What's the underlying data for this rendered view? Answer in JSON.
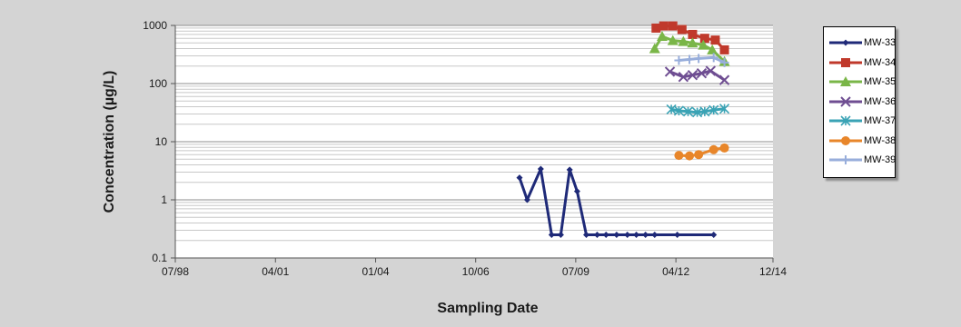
{
  "chart_data": {
    "type": "line",
    "xlabel": "Sampling Date",
    "ylabel": "Concentration (µg/L)",
    "y_scale": "log",
    "ylim": [
      0.1,
      1000
    ],
    "y_ticks": [
      {
        "value": 0.1,
        "label": "0.1"
      },
      {
        "value": 1,
        "label": "1"
      },
      {
        "value": 10,
        "label": "10"
      },
      {
        "value": 100,
        "label": "100"
      },
      {
        "value": 1000,
        "label": "1000"
      }
    ],
    "xlim": [
      "1998-07-01",
      "2014-12-01"
    ],
    "x_ticks": [
      {
        "date": "1998-07-01",
        "label": "07/98"
      },
      {
        "date": "2001-04-01",
        "label": "04/01"
      },
      {
        "date": "2004-01-01",
        "label": "01/04"
      },
      {
        "date": "2006-10-01",
        "label": "10/06"
      },
      {
        "date": "2009-07-01",
        "label": "07/09"
      },
      {
        "date": "2012-04-01",
        "label": "04/12"
      },
      {
        "date": "2014-12-01",
        "label": "12/14"
      }
    ],
    "grid": "horizontal",
    "legend_position": "right",
    "series": [
      {
        "name": "MW-33",
        "color": "#1f2a78",
        "marker": "diamond",
        "points": [
          [
            "2007-12-15",
            2.4
          ],
          [
            "2008-03-01",
            1.0
          ],
          [
            "2008-07-15",
            3.4
          ],
          [
            "2008-11-01",
            0.25
          ],
          [
            "2009-02-01",
            0.25
          ],
          [
            "2009-05-01",
            3.3
          ],
          [
            "2009-07-15",
            1.4
          ],
          [
            "2009-10-15",
            0.25
          ],
          [
            "2010-02-01",
            0.25
          ],
          [
            "2010-05-01",
            0.25
          ],
          [
            "2010-08-15",
            0.25
          ],
          [
            "2010-12-01",
            0.25
          ],
          [
            "2011-03-01",
            0.25
          ],
          [
            "2011-06-01",
            0.25
          ],
          [
            "2011-09-01",
            0.25
          ],
          [
            "2012-04-15",
            0.25
          ],
          [
            "2013-04-15",
            0.25
          ]
        ]
      },
      {
        "name": "MW-34",
        "color": "#c0392b",
        "marker": "square",
        "points": [
          [
            "2011-09-15",
            900
          ],
          [
            "2011-12-01",
            980
          ],
          [
            "2012-03-01",
            980
          ],
          [
            "2012-06-01",
            850
          ],
          [
            "2012-09-15",
            700
          ],
          [
            "2013-01-15",
            600
          ],
          [
            "2013-05-01",
            560
          ],
          [
            "2013-08-01",
            380
          ]
        ]
      },
      {
        "name": "MW-35",
        "color": "#7ab648",
        "marker": "triangle",
        "points": [
          [
            "2011-09-01",
            400
          ],
          [
            "2011-11-15",
            650
          ],
          [
            "2012-03-01",
            550
          ],
          [
            "2012-06-15",
            530
          ],
          [
            "2012-09-15",
            500
          ],
          [
            "2013-01-01",
            460
          ],
          [
            "2013-04-01",
            380
          ],
          [
            "2013-08-01",
            240
          ]
        ]
      },
      {
        "name": "MW-36",
        "color": "#6f4e92",
        "marker": "x",
        "points": [
          [
            "2012-02-01",
            160
          ],
          [
            "2012-06-15",
            130
          ],
          [
            "2012-09-15",
            140
          ],
          [
            "2012-12-15",
            150
          ],
          [
            "2013-03-15",
            165
          ],
          [
            "2013-08-01",
            115
          ]
        ]
      },
      {
        "name": "MW-37",
        "color": "#3aa3b5",
        "marker": "asterisk",
        "points": [
          [
            "2012-02-15",
            36
          ],
          [
            "2012-05-01",
            34
          ],
          [
            "2012-08-01",
            33
          ],
          [
            "2012-11-01",
            32
          ],
          [
            "2013-01-15",
            33
          ],
          [
            "2013-04-15",
            35
          ],
          [
            "2013-08-01",
            37
          ]
        ]
      },
      {
        "name": "MW-38",
        "color": "#e8862a",
        "marker": "circle",
        "points": [
          [
            "2012-05-01",
            5.8
          ],
          [
            "2012-08-15",
            5.7
          ],
          [
            "2012-11-15",
            6.0
          ],
          [
            "2013-04-15",
            7.3
          ],
          [
            "2013-08-01",
            7.8
          ]
        ]
      },
      {
        "name": "MW-39",
        "color": "#98aedb",
        "marker": "plus",
        "points": [
          [
            "2012-05-01",
            250
          ],
          [
            "2012-08-15",
            260
          ],
          [
            "2012-11-15",
            270
          ],
          [
            "2013-04-15",
            280
          ],
          [
            "2013-08-01",
            230
          ]
        ]
      }
    ]
  }
}
